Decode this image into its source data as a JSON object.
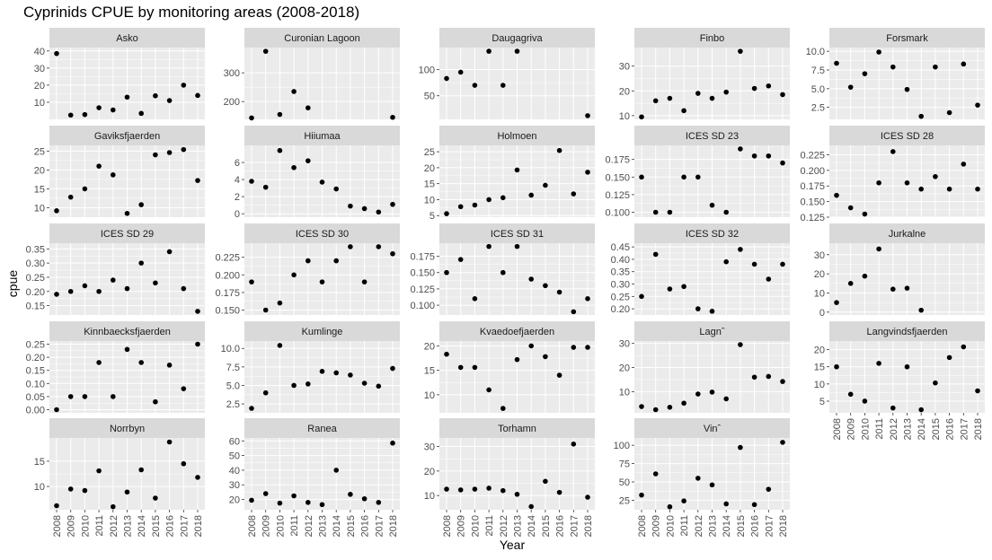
{
  "title": "Cyprinids CPUE by monitoring areas (2008-2018)",
  "xlabel": "Year",
  "ylabel": "cpue",
  "years": [
    2008,
    2009,
    2010,
    2011,
    2012,
    2013,
    2014,
    2015,
    2016,
    2017,
    2018
  ],
  "colors": {
    "panel_bg": "#ebebeb",
    "strip_bg": "#d9d9d9",
    "grid": "#ffffff",
    "point": "#000000",
    "axis_text": "#4d4d4d",
    "title_text": "#000000"
  },
  "chart_data": [
    {
      "type": "scatter",
      "panel": "Asko",
      "ylim": [
        0,
        42
      ],
      "yticks": [
        10,
        20,
        30,
        40
      ],
      "ytick_labels": [
        "10",
        "20",
        "30",
        "40"
      ],
      "x": [
        2008,
        2009,
        2010,
        2011,
        2012,
        2013,
        2014,
        2015,
        2016,
        2017,
        2018
      ],
      "values": [
        38.5,
        2.5,
        2.8,
        6.8,
        5.5,
        13,
        3.5,
        13.8,
        11,
        20,
        14
      ]
    },
    {
      "type": "scatter",
      "panel": "Curonian Lagoon",
      "ylim": [
        138,
        388
      ],
      "yticks": [
        200,
        300
      ],
      "ytick_labels": [
        "200",
        "300"
      ],
      "x": [
        2008,
        2009,
        2010,
        2011,
        2018
      ],
      "values": [
        143,
        375,
        155,
        235,
        145
      ]
    },
    {
      "type": "scatter",
      "panel": "Curonian Lagoon",
      "ylim": [
        138,
        388
      ],
      "yticks": [
        200,
        300
      ],
      "ytick_labels": [
        "200",
        "300"
      ],
      "x": [
        2012
      ],
      "values": [
        178
      ]
    },
    {
      "type": "scatter",
      "panel": "Daugagriva",
      "ylim": [
        5,
        142
      ],
      "yticks": [
        50,
        100
      ],
      "ytick_labels": [
        "50",
        "100"
      ],
      "x": [
        2008,
        2009,
        2010,
        2011,
        2012,
        2013,
        2018
      ],
      "values": [
        83,
        95,
        70,
        135,
        70,
        135,
        12
      ]
    },
    {
      "type": "scatter",
      "panel": "Finbo",
      "ylim": [
        8.5,
        37.5
      ],
      "yticks": [
        10,
        20,
        30
      ],
      "ytick_labels": [
        "10",
        "20",
        "30"
      ],
      "x": [
        2008,
        2009,
        2010,
        2011,
        2012,
        2013,
        2014,
        2015,
        2016,
        2017,
        2018
      ],
      "values": [
        9.5,
        16,
        17,
        12,
        19,
        17,
        19.5,
        36,
        21,
        22,
        18.5
      ]
    },
    {
      "type": "scatter",
      "panel": "Forsmark",
      "ylim": [
        0.9,
        10.5
      ],
      "yticks": [
        2.5,
        5.0,
        7.5,
        10.0
      ],
      "ytick_labels": [
        "2.5",
        "5.0",
        "7.5",
        "10.0"
      ],
      "x": [
        2008,
        2009,
        2010,
        2011,
        2012,
        2013,
        2014,
        2015,
        2016,
        2017,
        2018
      ],
      "values": [
        8.4,
        5.2,
        7.0,
        9.9,
        7.9,
        4.9,
        1.3,
        7.9,
        1.8,
        8.3,
        2.8
      ]
    },
    {
      "type": "scatter",
      "panel": "Gaviksfjaerden",
      "ylim": [
        7.5,
        26.5
      ],
      "yticks": [
        10,
        15,
        20,
        25
      ],
      "ytick_labels": [
        "10",
        "15",
        "20",
        "25"
      ],
      "x": [
        2008,
        2009,
        2010,
        2011,
        2012,
        2013,
        2014,
        2015,
        2016,
        2017,
        2018
      ],
      "values": [
        9.2,
        12.8,
        15,
        21,
        18.7,
        8.5,
        10.8,
        24,
        24.6,
        25.4,
        17.2
      ]
    },
    {
      "type": "scatter",
      "panel": "Hiiumaa",
      "ylim": [
        -0.4,
        8
      ],
      "yticks": [
        0,
        2,
        4,
        6
      ],
      "ytick_labels": [
        "0",
        "2",
        "4",
        "6"
      ],
      "x": [
        2008,
        2009,
        2010,
        2011,
        2012,
        2013,
        2014,
        2015,
        2016,
        2017,
        2018
      ],
      "values": [
        3.8,
        3.1,
        7.4,
        5.4,
        6.2,
        3.7,
        2.9,
        0.9,
        0.6,
        0.2,
        1.1
      ]
    },
    {
      "type": "scatter",
      "panel": "Holmoen",
      "ylim": [
        4.5,
        27
      ],
      "yticks": [
        5,
        10,
        15,
        20,
        25
      ],
      "ytick_labels": [
        "5",
        "10",
        "15",
        "20",
        "25"
      ],
      "x": [
        2008,
        2009,
        2010,
        2011,
        2012,
        2013,
        2014,
        2015,
        2016,
        2017,
        2018
      ],
      "values": [
        5.6,
        7.8,
        8.3,
        10,
        10.6,
        19.3,
        11.4,
        14.5,
        25.4,
        11.8,
        18.6
      ]
    },
    {
      "type": "scatter",
      "panel": "ICES SD 23",
      "ylim": [
        0.093,
        0.195
      ],
      "yticks": [
        0.1,
        0.125,
        0.15,
        0.175
      ],
      "ytick_labels": [
        "0.100",
        "0.125",
        "0.150",
        "0.175"
      ],
      "x": [
        2008,
        2009,
        2010,
        2011,
        2012,
        2013,
        2014,
        2015,
        2016,
        2017,
        2018
      ],
      "values": [
        0.15,
        0.1,
        0.1,
        0.15,
        0.15,
        0.11,
        0.1,
        0.19,
        0.18,
        0.18,
        0.17
      ]
    },
    {
      "type": "scatter",
      "panel": "ICES SD 28",
      "ylim": [
        0.125,
        0.24
      ],
      "yticks": [
        0.125,
        0.15,
        0.175,
        0.2,
        0.225
      ],
      "ytick_labels": [
        "0.125",
        "0.150",
        "0.175",
        "0.200",
        "0.225"
      ],
      "x": [
        2008,
        2009,
        2010,
        2011,
        2012,
        2013,
        2014,
        2015,
        2016,
        2017,
        2018
      ],
      "values": [
        0.16,
        0.14,
        0.13,
        0.18,
        0.23,
        0.18,
        0.17,
        0.19,
        0.17,
        0.21,
        0.17
      ]
    },
    {
      "type": "scatter",
      "panel": "ICES SD 29",
      "ylim": [
        0.117,
        0.37
      ],
      "yticks": [
        0.15,
        0.2,
        0.25,
        0.3,
        0.35
      ],
      "ytick_labels": [
        "0.15",
        "0.20",
        "0.25",
        "0.30",
        "0.35"
      ],
      "x": [
        2008,
        2009,
        2010,
        2011,
        2012,
        2013,
        2014,
        2015,
        2016,
        2017,
        2018
      ],
      "values": [
        0.19,
        0.2,
        0.22,
        0.2,
        0.24,
        0.21,
        0.3,
        0.23,
        0.34,
        0.21,
        0.13
      ]
    },
    {
      "type": "scatter",
      "panel": "ICES SD 30",
      "ylim": [
        0.143,
        0.245
      ],
      "yticks": [
        0.15,
        0.175,
        0.2,
        0.225
      ],
      "ytick_labels": [
        "0.150",
        "0.175",
        "0.200",
        "0.225"
      ],
      "x": [
        2008,
        2009,
        2010,
        2011,
        2012,
        2013,
        2014,
        2015,
        2016,
        2017,
        2018
      ],
      "values": [
        0.19,
        0.15,
        0.16,
        0.2,
        0.22,
        0.19,
        0.22,
        0.24,
        0.19,
        0.24,
        0.23
      ]
    },
    {
      "type": "scatter",
      "panel": "ICES SD 31",
      "ylim": [
        0.085,
        0.195
      ],
      "yticks": [
        0.1,
        0.125,
        0.15,
        0.175
      ],
      "ytick_labels": [
        "0.100",
        "0.125",
        "0.150",
        "0.175"
      ],
      "x": [
        2008,
        2009,
        2010,
        2011,
        2012,
        2013,
        2014,
        2015,
        2016,
        2017,
        2018
      ],
      "values": [
        0.15,
        0.17,
        0.11,
        0.19,
        0.15,
        0.19,
        0.14,
        0.13,
        0.12,
        0.09,
        0.11
      ]
    },
    {
      "type": "scatter",
      "panel": "ICES SD 32",
      "ylim": [
        0.175,
        0.465
      ],
      "yticks": [
        0.2,
        0.25,
        0.3,
        0.35,
        0.4,
        0.45
      ],
      "ytick_labels": [
        "0.20",
        "0.25",
        "0.30",
        "0.35",
        "0.40",
        "0.45"
      ],
      "x": [
        2008,
        2009,
        2010,
        2011,
        2012,
        2013,
        2014,
        2015,
        2016,
        2017,
        2018
      ],
      "values": [
        0.25,
        0.42,
        0.28,
        0.29,
        0.2,
        0.19,
        0.39,
        0.44,
        0.38,
        0.32,
        0.38
      ]
    },
    {
      "type": "scatter",
      "panel": "Jurkalne",
      "ylim": [
        -1.5,
        36
      ],
      "yticks": [
        0,
        10,
        20,
        30
      ],
      "ytick_labels": [
        "0",
        "10",
        "20",
        "30"
      ],
      "x": [
        2008,
        2009,
        2010,
        2011,
        2012,
        2013,
        2014
      ],
      "values": [
        5,
        15,
        18.8,
        33,
        12,
        12.5,
        1
      ]
    },
    {
      "type": "scatter",
      "panel": "Kinnbaecksfjaerden",
      "ylim": [
        -0.012,
        0.262
      ],
      "yticks": [
        0,
        0.05,
        0.1,
        0.15,
        0.2,
        0.25
      ],
      "ytick_labels": [
        "0.00",
        "0.05",
        "0.10",
        "0.15",
        "0.20",
        "0.25"
      ],
      "x": [
        2008,
        2009,
        2010,
        2011,
        2012,
        2013,
        2014,
        2015,
        2016,
        2017,
        2018
      ],
      "values": [
        0,
        0.05,
        0.05,
        0.18,
        0.05,
        0.23,
        0.18,
        0.03,
        0.17,
        0.08,
        0.25
      ]
    },
    {
      "type": "scatter",
      "panel": "Kumlinge",
      "ylim": [
        1.3,
        11
      ],
      "yticks": [
        2.5,
        5.0,
        7.5,
        10.0
      ],
      "ytick_labels": [
        "2.5",
        "5.0",
        "7.5",
        "10.0"
      ],
      "x": [
        2008,
        2009,
        2010,
        2011,
        2012,
        2013,
        2014,
        2015,
        2016,
        2017,
        2018
      ],
      "values": [
        1.9,
        4.0,
        10.4,
        5.0,
        5.2,
        6.9,
        6.7,
        6.4,
        5.3,
        4.9,
        7.3
      ]
    },
    {
      "type": "scatter",
      "panel": "Kvaedoefjaerden",
      "ylim": [
        6.3,
        21
      ],
      "yticks": [
        10,
        15,
        20
      ],
      "ytick_labels": [
        "10",
        "15",
        "20"
      ],
      "x": [
        2008,
        2009,
        2010,
        2011,
        2012,
        2013,
        2014,
        2015,
        2016,
        2017,
        2018
      ],
      "values": [
        18.3,
        15.6,
        15.6,
        11,
        7.2,
        17.2,
        20,
        17.8,
        14,
        19.7,
        19.7
      ]
    },
    {
      "type": "scatter",
      "panel": "Lagnˆ",
      "ylim": [
        1.2,
        31
      ],
      "yticks": [
        10,
        20,
        30
      ],
      "ytick_labels": [
        "10",
        "20",
        "30"
      ],
      "x": [
        2008,
        2009,
        2010,
        2011,
        2012,
        2013,
        2014,
        2015,
        2016,
        2017,
        2018
      ],
      "values": [
        3.8,
        2.5,
        3.5,
        5.2,
        9,
        9.8,
        7,
        29.5,
        16,
        16.3,
        14.2
      ]
    },
    {
      "type": "scatter",
      "panel": "Langvindsfjaerden",
      "ylim": [
        1.6,
        22.5
      ],
      "yticks": [
        5,
        10,
        15,
        20
      ],
      "ytick_labels": [
        "5",
        "10",
        "15",
        "20"
      ],
      "x": [
        2008,
        2009,
        2010,
        2011,
        2012,
        2013,
        2014,
        2015,
        2016,
        2017,
        2018
      ],
      "values": [
        15,
        7,
        5,
        16,
        3,
        15,
        2.5,
        10.3,
        17.7,
        20.8,
        8
      ]
    },
    {
      "type": "scatter",
      "panel": "Norrbyn",
      "ylim": [
        5.4,
        19.6
      ],
      "yticks": [
        10,
        15
      ],
      "ytick_labels": [
        "10",
        "15"
      ],
      "x": [
        2008,
        2009,
        2010,
        2011,
        2012,
        2013,
        2014,
        2015,
        2016,
        2017,
        2018
      ],
      "values": [
        6.2,
        9.5,
        9.2,
        13.1,
        6,
        8.9,
        13.3,
        7.7,
        18.8,
        14.5,
        11.8
      ]
    },
    {
      "type": "scatter",
      "panel": "Ranea",
      "ylim": [
        13,
        62
      ],
      "yticks": [
        20,
        30,
        40,
        50,
        60
      ],
      "ytick_labels": [
        "20",
        "30",
        "40",
        "50",
        "60"
      ],
      "x": [
        2008,
        2009,
        2010,
        2011,
        2012,
        2013,
        2014,
        2015,
        2016,
        2017,
        2018
      ],
      "values": [
        19.5,
        24,
        17.5,
        22.5,
        18,
        16.5,
        40,
        23.5,
        20.5,
        18,
        58.5
      ]
    },
    {
      "type": "scatter",
      "panel": "Torhamn",
      "ylim": [
        4.2,
        33.5
      ],
      "yticks": [
        10,
        20,
        30
      ],
      "ytick_labels": [
        "10",
        "20",
        "30"
      ],
      "x": [
        2008,
        2009,
        2010,
        2011,
        2012,
        2013,
        2014,
        2015,
        2016,
        2017,
        2018
      ],
      "values": [
        12.6,
        12.3,
        12.6,
        13,
        12,
        10.5,
        5.5,
        15.8,
        11.3,
        31,
        9.3
      ]
    },
    {
      "type": "scatter",
      "panel": "Vinˆ",
      "ylim": [
        12,
        110
      ],
      "yticks": [
        25,
        50,
        75,
        100
      ],
      "ytick_labels": [
        "25",
        "50",
        "75",
        "100"
      ],
      "x": [
        2008,
        2009,
        2010,
        2011,
        2012,
        2013,
        2014,
        2015,
        2016,
        2017,
        2018
      ],
      "values": [
        32,
        61,
        16,
        24,
        55,
        46,
        20,
        97,
        19,
        40,
        104
      ]
    }
  ]
}
